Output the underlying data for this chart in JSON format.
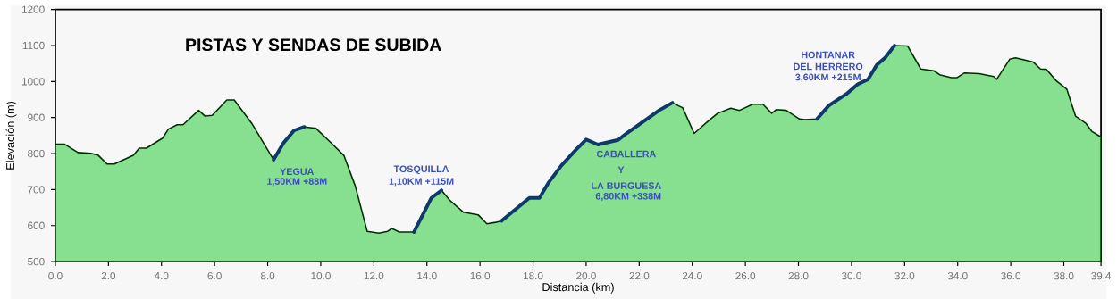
{
  "chart_data": {
    "type": "area",
    "title": "PISTAS Y SENDAS DE SUBIDA",
    "xlabel": "Distancia   (km)",
    "ylabel": "Elevación (m)",
    "xlim": [
      0,
      39.4
    ],
    "ylim": [
      500,
      1200
    ],
    "xticks": [
      {
        "value": 0,
        "label": "0.0"
      },
      {
        "value": 2,
        "label": "2.0"
      },
      {
        "value": 4,
        "label": "4.0"
      },
      {
        "value": 6,
        "label": "6.0"
      },
      {
        "value": 8,
        "label": "8.0"
      },
      {
        "value": 10,
        "label": "10.0"
      },
      {
        "value": 12,
        "label": "12.0"
      },
      {
        "value": 14,
        "label": "14.0"
      },
      {
        "value": 16,
        "label": "16.0"
      },
      {
        "value": 18,
        "label": "18.0"
      },
      {
        "value": 20,
        "label": "20.0"
      },
      {
        "value": 22,
        "label": "22.0"
      },
      {
        "value": 24,
        "label": "24.0"
      },
      {
        "value": 26,
        "label": "26.0"
      },
      {
        "value": 28,
        "label": "28.0"
      },
      {
        "value": 30,
        "label": "30.0"
      },
      {
        "value": 32,
        "label": "32.0"
      },
      {
        "value": 34,
        "label": "34.0"
      },
      {
        "value": 36,
        "label": "36.0"
      },
      {
        "value": 38,
        "label": "38.0"
      },
      {
        "value": 39.4,
        "label": "39.4"
      }
    ],
    "yticks": [
      500,
      600,
      700,
      800,
      900,
      1000,
      1100,
      1200
    ],
    "series": [
      {
        "color": "#86e08f",
        "x": [
          0,
          0.35,
          0.85,
          1.34,
          1.62,
          1.95,
          2.22,
          2.94,
          3.16,
          3.43,
          4.04,
          4.26,
          4.59,
          4.81,
          5.4,
          5.64,
          5.91,
          6.46,
          6.74,
          7.4,
          8.22,
          8.6,
          8.99,
          9.38,
          9.82,
          10.37,
          10.87,
          11.3,
          11.75,
          12.19,
          12.52,
          12.68,
          12.96,
          13.51,
          14.17,
          14.55,
          14.88,
          15.38,
          15.93,
          16.26,
          16.59,
          16.81,
          17.86,
          18.24,
          18.57,
          19.07,
          19.62,
          20.0,
          20.44,
          21.21,
          21.54,
          22.75,
          23.25,
          23.64,
          24.07,
          24.63,
          24.96,
          25.45,
          25.78,
          26.28,
          26.66,
          26.99,
          27.16,
          27.54,
          28.04,
          28.26,
          28.7,
          29.14,
          29.8,
          30.24,
          30.62,
          30.95,
          31.29,
          31.62,
          32.11,
          32.61,
          33.1,
          33.32,
          33.76,
          33.98,
          34.26,
          34.81,
          35.36,
          35.47,
          35.96,
          36.18,
          36.85,
          37.12,
          37.34,
          37.73,
          38.11,
          38.44,
          38.83,
          39.05,
          39.4
        ],
        "values": [
          826,
          826,
          803,
          801,
          795,
          771,
          771,
          795,
          815,
          815,
          843,
          868,
          880,
          880,
          920,
          904,
          906,
          949,
          949,
          884,
          783,
          830,
          864,
          874,
          870,
          831,
          795,
          710,
          584,
          579,
          584,
          592,
          582,
          582,
          677,
          698,
          669,
          637,
          630,
          605,
          609,
          613,
          677,
          677,
          718,
          767,
          811,
          839,
          825,
          838,
          857,
          920,
          941,
          927,
          856,
          892,
          912,
          926,
          920,
          937,
          937,
          912,
          922,
          920,
          896,
          894,
          896,
          933,
          965,
          993,
          1006,
          1046,
          1068,
          1100,
          1099,
          1035,
          1030,
          1019,
          1011,
          1011,
          1024,
          1022,
          1014,
          1006,
          1062,
          1066,
          1054,
          1035,
          1034,
          1001,
          979,
          904,
          884,
          862,
          846
        ]
      },
      {
        "type": "line",
        "color": "#0d3a6b",
        "x": [
          8.22,
          8.6,
          8.99,
          9.38
        ],
        "values": [
          783,
          830,
          864,
          874
        ]
      },
      {
        "type": "line",
        "color": "#0d3a6b",
        "x": [
          13.51,
          14.17,
          14.55
        ],
        "values": [
          582,
          677,
          698
        ]
      },
      {
        "type": "line",
        "color": "#0d3a6b",
        "x": [
          16.81,
          17.86,
          18.24,
          18.57,
          19.07,
          19.62,
          20.0,
          20.44,
          21.21,
          21.54,
          22.75,
          23.25
        ],
        "values": [
          613,
          677,
          677,
          718,
          767,
          811,
          839,
          825,
          838,
          857,
          920,
          941
        ]
      },
      {
        "type": "line",
        "color": "#0d3a6b",
        "x": [
          28.7,
          29.14,
          29.8,
          30.24,
          30.62,
          30.95,
          31.29,
          31.62
        ],
        "values": [
          896,
          933,
          965,
          993,
          1006,
          1046,
          1068,
          1100
        ]
      }
    ],
    "annotations": [
      "YEGUA",
      "1,50KM +88M",
      "TOSQUILLA",
      "1,10KM +115M",
      "CABALLERA",
      "Y",
      "LA BURGUESA",
      "6,80KM +338M",
      "HONTANAR",
      "DEL HERRERO",
      "3,60KM +215M"
    ]
  }
}
